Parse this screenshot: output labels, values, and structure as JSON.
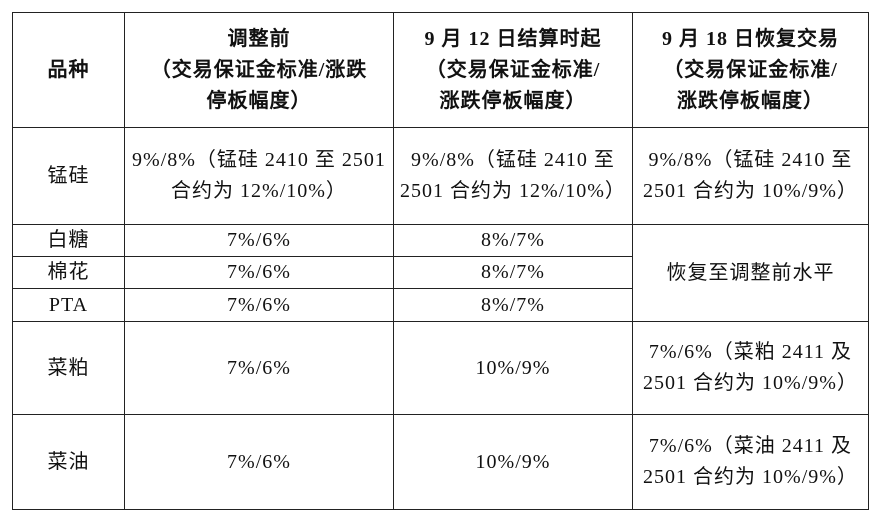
{
  "table": {
    "header": [
      [
        "品种"
      ],
      [
        "调整前",
        "（交易保证金标准/涨跌",
        "停板幅度）"
      ],
      [
        "9 月 12 日结算时起",
        "（交易保证金标准/",
        "涨跌停板幅度）"
      ],
      [
        "9 月 18 日恢复交易",
        "（交易保证金标准/",
        "涨跌停板幅度）"
      ]
    ],
    "rows": [
      [
        "锰硅",
        "9%/8%（锰硅 2410 至 2501 合约为 12%/10%）",
        "9%/8%（锰硅 2410 至 2501 合约为 12%/10%）",
        "9%/8%（锰硅 2410 至 2501 合约为 10%/9%）"
      ],
      [
        "白糖",
        "7%/6%",
        "8%/7%",
        "恢复至调整前水平"
      ],
      [
        "棉花",
        "7%/6%",
        "8%/7%"
      ],
      [
        "PTA",
        "7%/6%",
        "8%/7%"
      ],
      [
        "菜粕",
        "7%/6%",
        "10%/9%",
        "7%/6%（菜粕 2411 及 2501 合约为 10%/9%）"
      ],
      [
        "菜油",
        "7%/6%",
        "10%/9%",
        "7%/6%（菜油 2411 及 2501 合约为 10%/9%）"
      ]
    ]
  }
}
